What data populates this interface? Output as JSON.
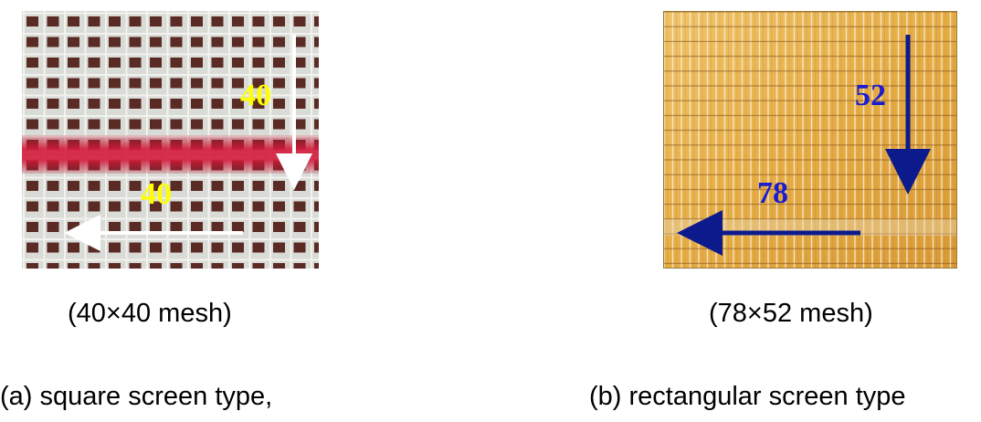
{
  "panel_a": {
    "vertical_count": "40",
    "horizontal_count": "40",
    "mesh_caption": "(40×40 mesh)",
    "type_caption": "(a) square screen type,",
    "label_color": "#ffff00",
    "arrow_color": "#ffffff",
    "stripe_color": "#d21a3a"
  },
  "panel_b": {
    "vertical_count": "52",
    "horizontal_count": "78",
    "mesh_caption": "(78×52 mesh)",
    "type_caption": "(b) rectangular screen type",
    "label_color": "#1c1ccf",
    "arrow_color": "#0c1a8c",
    "background_color": "#e8b24a"
  }
}
